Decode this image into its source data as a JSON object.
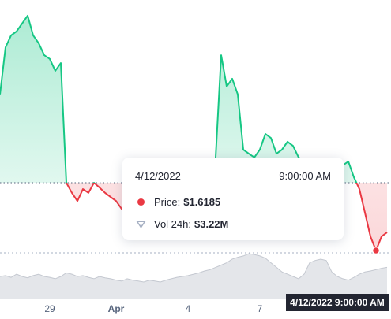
{
  "chart_data": {
    "type": "line",
    "categories": [
      null,
      null,
      null,
      null,
      null,
      null,
      null,
      null,
      null,
      "29",
      null,
      null,
      null,
      null,
      null,
      null,
      null,
      null,
      null,
      null,
      null,
      "Apr",
      null,
      null,
      null,
      null,
      null,
      null,
      null,
      null,
      null,
      null,
      null,
      null,
      "4",
      null,
      null,
      null,
      null,
      null,
      null,
      null,
      null,
      null,
      null,
      null,
      null,
      "7",
      null,
      null,
      null,
      null,
      null,
      null,
      null,
      null,
      null,
      null,
      null,
      null,
      null,
      null,
      null,
      null,
      null,
      null,
      null,
      null,
      null,
      null,
      null
    ],
    "series": [
      {
        "name": "Price",
        "color": "#16c784",
        "below_color": "#ea3943",
        "values": [
          2.037,
          2.163,
          2.195,
          2.206,
          2.227,
          2.248,
          2.195,
          2.174,
          2.142,
          2.132,
          2.1,
          2.121,
          1.8,
          1.773,
          1.751,
          1.783,
          1.773,
          1.8,
          1.787,
          1.773,
          1.762,
          1.751,
          1.73,
          1.737,
          1.741,
          1.751,
          1.745,
          1.741,
          1.751,
          1.762,
          1.751,
          1.745,
          1.751,
          1.762,
          1.758,
          1.751,
          1.762,
          1.773,
          1.783,
          1.868,
          2.142,
          2.058,
          2.079,
          2.037,
          1.889,
          1.878,
          1.868,
          1.889,
          1.931,
          1.92,
          1.878,
          1.889,
          1.91,
          1.899,
          1.868,
          1.857,
          1.836,
          1.815,
          1.8,
          1.783,
          1.794,
          1.815,
          1.847,
          1.857,
          1.815,
          1.783,
          1.72,
          1.656,
          1.6185,
          1.656,
          1.667
        ]
      },
      {
        "name": "Vol 24h",
        "color": "#c4c8d0",
        "axis": "y2",
        "values": [
          50,
          52,
          48,
          55,
          50,
          47,
          52,
          55,
          50,
          48,
          45,
          50,
          58,
          55,
          50,
          52,
          48,
          45,
          50,
          47,
          45,
          42,
          40,
          45,
          42,
          40,
          38,
          42,
          40,
          38,
          42,
          45,
          48,
          50,
          52,
          55,
          58,
          62,
          65,
          70,
          75,
          80,
          88,
          92,
          95,
          100,
          98,
          95,
          90,
          80,
          70,
          60,
          55,
          50,
          45,
          55,
          80,
          85,
          88,
          85,
          60,
          50,
          45,
          42,
          48,
          55,
          60,
          62,
          65,
          68,
          70
        ]
      }
    ],
    "baseline": 1.8,
    "ylim": [
      1.61,
      2.29
    ],
    "y2lim": [
      0,
      100
    ],
    "tooltip": {
      "date": "4/12/2022",
      "time": "9:00:00 AM",
      "price_label": "Price:",
      "price": "$1.6185",
      "volume_label": "Vol 24h:",
      "volume": "$3.22M",
      "index": 68
    },
    "cursor_label": "4/12/2022 9:00:00 AM"
  }
}
